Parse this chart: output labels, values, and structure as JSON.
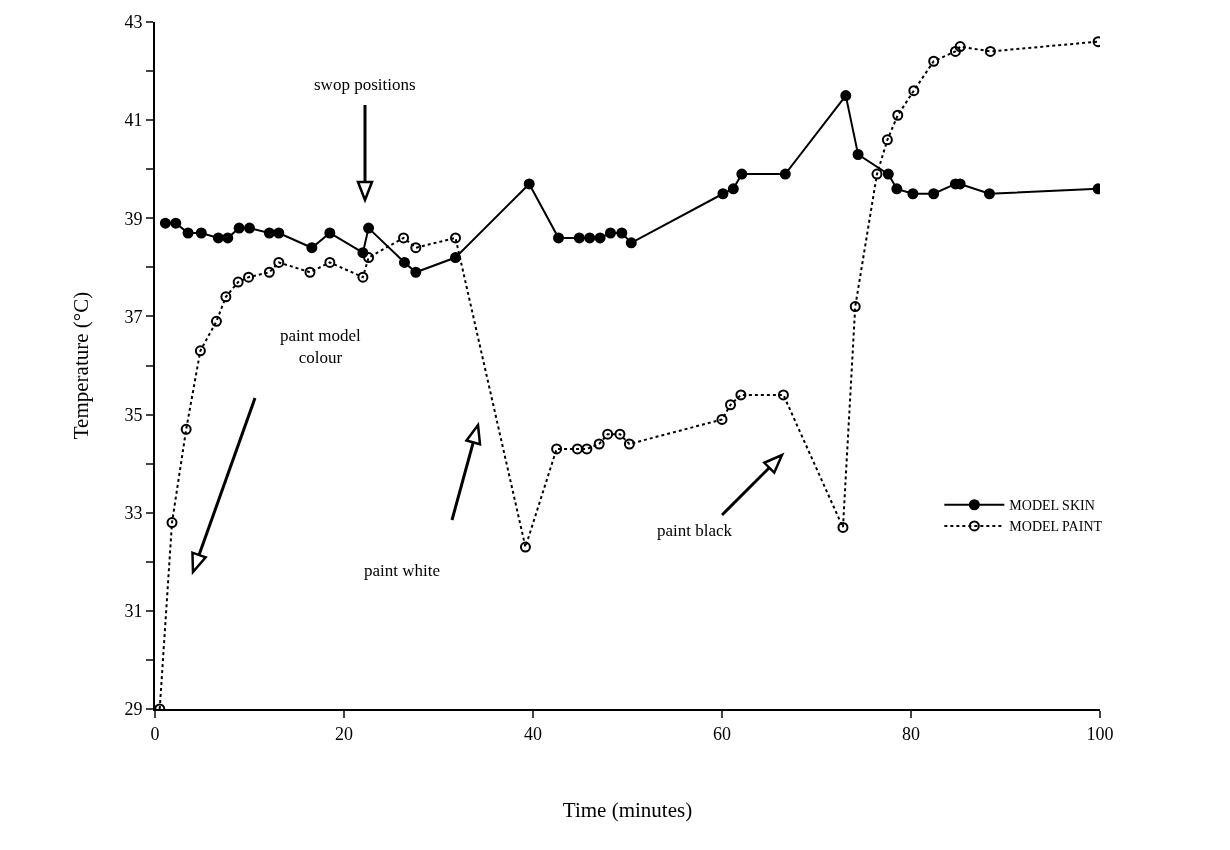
{
  "chart_data": {
    "type": "line",
    "xlabel": "Time (minutes)",
    "ylabel": "Temperature (°C)",
    "xlim": [
      0,
      100
    ],
    "xticks": [
      0,
      20,
      40,
      60,
      80,
      100
    ],
    "ylim": [
      29,
      43
    ],
    "yticks": [
      29,
      {
        "value": 30,
        "label": null
      },
      31,
      {
        "value": 32,
        "label": null
      },
      33,
      {
        "value": 34,
        "label": null
      },
      35,
      {
        "value": 36,
        "label": null
      },
      37,
      {
        "value": 38,
        "label": null
      },
      39,
      {
        "value": 40,
        "label": null
      },
      41,
      {
        "value": 42,
        "label": null
      },
      43
    ],
    "grid": false,
    "legend": "bottom right",
    "marker": "circle",
    "series": [
      {
        "name": "MODEL SKIN",
        "color": "#000000",
        "line_style": "solid",
        "x": [
          1.1,
          2.2,
          3.5,
          4.9,
          6.7,
          7.7,
          8.9,
          10.0,
          12.1,
          13.1,
          16.6,
          18.5,
          22.0,
          22.6,
          26.4,
          27.6,
          31.8,
          39.6,
          42.7,
          44.9,
          46.0,
          47.1,
          48.2,
          49.4,
          50.4,
          60.1,
          61.2,
          62.1,
          66.7,
          73.1,
          74.4,
          77.6,
          78.5,
          80.2,
          82.4,
          84.7,
          85.2,
          88.3,
          99.8
        ],
        "values": [
          38.9,
          38.9,
          38.7,
          38.7,
          38.6,
          38.6,
          38.8,
          38.8,
          38.7,
          38.7,
          38.4,
          38.7,
          38.3,
          38.8,
          38.1,
          37.9,
          38.2,
          39.7,
          38.6,
          38.6,
          38.6,
          38.6,
          38.7,
          38.7,
          38.5,
          39.5,
          39.6,
          39.9,
          39.9,
          41.5,
          40.3,
          39.9,
          39.6,
          39.5,
          39.5,
          39.7,
          39.7,
          39.5,
          39.6
        ]
      },
      {
        "name": "MODEL PAINT",
        "color": "#000000",
        "line_style": "dotted",
        "marker": "circle-open",
        "x": [
          0.5,
          1.8,
          3.3,
          4.8,
          6.5,
          7.5,
          8.8,
          9.9,
          12.1,
          13.1,
          16.4,
          18.5,
          22.0,
          22.6,
          26.3,
          27.6,
          31.8,
          39.2,
          42.5,
          44.7,
          45.7,
          47.0,
          47.9,
          49.2,
          50.2,
          60.0,
          60.9,
          62.0,
          66.5,
          72.8,
          74.1,
          76.4,
          77.5,
          78.6,
          80.3,
          82.4,
          84.7,
          85.2,
          88.4,
          99.8
        ],
        "values": [
          29.0,
          32.8,
          34.7,
          36.3,
          36.9,
          37.4,
          37.7,
          37.8,
          37.9,
          38.1,
          37.9,
          38.1,
          37.8,
          38.2,
          38.6,
          38.4,
          38.6,
          32.3,
          34.3,
          34.3,
          34.3,
          34.4,
          34.6,
          34.6,
          34.4,
          34.9,
          35.2,
          35.4,
          35.4,
          32.7,
          37.2,
          39.9,
          40.6,
          41.1,
          41.6,
          42.2,
          42.4,
          42.5,
          42.4,
          42.6
        ]
      }
    ],
    "annotations": [
      "swop positions",
      "paint model\ncolour",
      "paint white",
      "paint black"
    ]
  }
}
